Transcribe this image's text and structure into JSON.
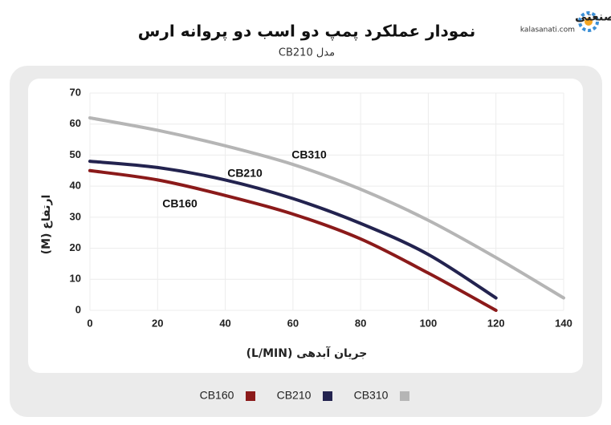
{
  "brand": {
    "name": "کالاصنعتی",
    "site": "kalasanati.com"
  },
  "chart_data": {
    "type": "line",
    "title": "نمودار عملکرد پمپ دو اسب دو پروانه ارس",
    "subtitle": "مدل CB210",
    "x_label": "جریان آبدهی (L/MIN)",
    "y_label": "ارتفاع (M)",
    "x": [
      0,
      20,
      40,
      60,
      80,
      100,
      120,
      140
    ],
    "series": [
      {
        "name": "CB160",
        "color": "#8b1a1a",
        "values": [
          45,
          42,
          37,
          31,
          23,
          12,
          0,
          null
        ]
      },
      {
        "name": "CB210",
        "color": "#23234f",
        "values": [
          48,
          46,
          42,
          36,
          28,
          18,
          4,
          null
        ]
      },
      {
        "name": "CB310",
        "color": "#b5b5b5",
        "values": [
          62,
          58,
          53,
          47,
          39,
          29,
          17,
          4
        ]
      }
    ],
    "xlim": [
      0,
      140
    ],
    "ylim": [
      0,
      70
    ],
    "xticks": [
      0,
      20,
      40,
      60,
      80,
      100,
      120,
      140
    ],
    "yticks": [
      0,
      10,
      20,
      30,
      40,
      50,
      60,
      70
    ],
    "grid": true,
    "legend": "bottom"
  }
}
